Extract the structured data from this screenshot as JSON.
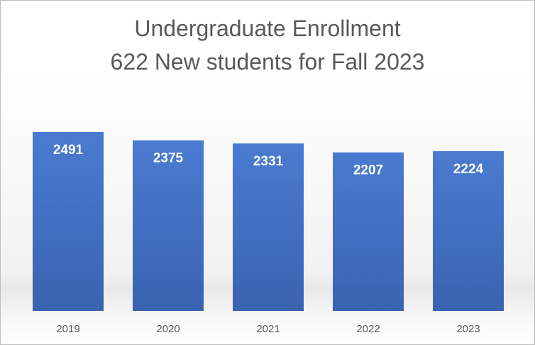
{
  "chart_data": {
    "type": "bar",
    "title": "Undergraduate Enrollment",
    "subtitle": "622 New students for Fall 2023",
    "categories": [
      "2019",
      "2020",
      "2021",
      "2022",
      "2023"
    ],
    "values": [
      2491,
      2375,
      2331,
      2207,
      2224
    ],
    "data_labels": [
      "2491",
      "2375",
      "2331",
      "2207",
      "2224"
    ],
    "xlabel": "",
    "ylabel": "",
    "ylim": [
      0,
      2800
    ],
    "grid": false,
    "legend": "none",
    "colors": {
      "bar": "#4472c4",
      "bar_top": "#4a7bd0",
      "bar_bottom": "#3a63b0",
      "text": "#595959",
      "label": "#ffffff"
    }
  }
}
